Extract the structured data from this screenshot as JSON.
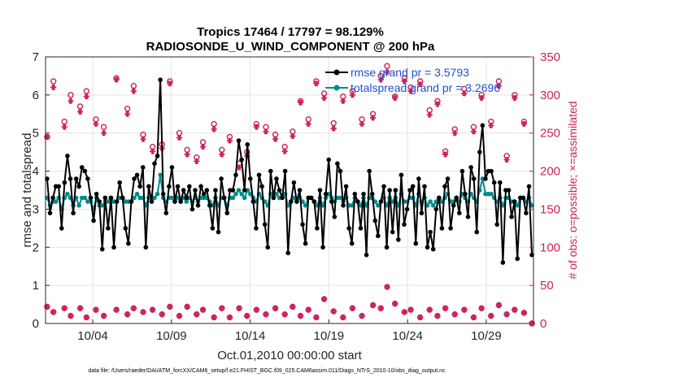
{
  "chart_data": {
    "type": "line",
    "title_line1": "Tropics 17464 / 17797 = 98.129%",
    "title_line2": "RADIOSONDE_U_WIND_COMPONENT @ 200 hPa",
    "xlabel": "Oct.01,2010 00:00:00 start",
    "ylabel_left": "rmse and totalspread",
    "ylabel_right": "# of obs: o=possible; ×=assimilated",
    "xlim": [
      1.0,
      32.0
    ],
    "ylim_left": [
      0,
      7
    ],
    "ylim_right": [
      0,
      350
    ],
    "x_ticks": [
      {
        "value": 4,
        "label": "10/04"
      },
      {
        "value": 9,
        "label": "10/09"
      },
      {
        "value": 14,
        "label": "10/14"
      },
      {
        "value": 19,
        "label": "10/19"
      },
      {
        "value": 24,
        "label": "10/24"
      },
      {
        "value": 29,
        "label": "10/29"
      }
    ],
    "y_ticks_left": [
      "0",
      "1",
      "2",
      "3",
      "4",
      "5",
      "6",
      "7"
    ],
    "y_ticks_right": [
      "0",
      "50",
      "100",
      "150",
      "200",
      "250",
      "300",
      "350"
    ],
    "series": [
      {
        "name": "rmse",
        "legend": "rmse grand pr = 3.5793",
        "color": "#000000",
        "values": [
          3.8,
          2.9,
          3.3,
          3.6,
          3.6,
          2.5,
          3.7,
          4.4,
          3.8,
          2.9,
          3.8,
          3.6,
          4.1,
          4.0,
          3.8,
          3.3,
          2.7,
          3.4,
          3.2,
          1.95,
          3.3,
          2.5,
          3.3,
          2.0,
          3.2,
          3.7,
          3.3,
          2.5,
          2.1,
          3.2,
          3.8,
          3.9,
          3.6,
          4.1,
          2.0,
          3.6,
          3.2,
          4.2,
          4.4,
          6.4,
          3.4,
          2.9,
          3.6,
          4.1,
          3.2,
          3.6,
          3.2,
          3.5,
          3.3,
          3.6,
          3.0,
          3.5,
          3.1,
          3.6,
          3.4,
          3.5,
          3.1,
          2.5,
          3.5,
          2.4,
          3.8,
          3.3,
          2.9,
          3.5,
          3.5,
          3.9,
          4.8,
          4.3,
          3.5,
          4.7,
          3.8,
          3.2,
          2.5,
          3.9,
          3.6,
          2.6,
          2.0,
          4.0,
          3.3,
          3.8,
          3.5,
          3.3,
          4.0,
          1.85,
          3.2,
          3.7,
          3.2,
          3.5,
          2.6,
          2.1,
          3.3,
          3.3,
          3.2,
          2.5,
          3.5,
          2.0,
          3.4,
          4.3,
          3.2,
          2.8,
          4.2,
          4.0,
          3.1,
          3.6,
          2.5,
          2.1,
          3.4,
          3.2,
          2.5,
          3.4,
          1.8,
          4.0,
          3.4,
          2.7,
          2.3,
          3.2,
          3.6,
          2.0,
          3.5,
          2.4,
          3.5,
          2.2,
          3.9,
          2.6,
          3.0,
          3.5,
          3.6,
          2.1,
          3.8,
          2.9,
          3.6,
          2.0,
          2.4,
          1.95,
          3.0,
          3.3,
          2.5,
          3.6,
          3.8,
          2.5,
          3.1,
          3.3,
          2.9,
          4.0,
          3.4,
          2.8,
          4.1,
          3.8,
          2.4,
          4.5,
          5.2,
          3.8,
          4.0,
          4.0,
          3.7,
          2.6,
          3.7,
          1.6,
          3.5,
          3.5,
          2.8,
          3.2,
          1.7,
          3.3,
          3.3,
          2.9,
          3.6,
          1.8
        ],
        "marker": "filled circle"
      },
      {
        "name": "totalspread",
        "legend": "totalspread grand pr = 3.2696",
        "color": "#008b8b",
        "values": [
          3.3,
          3.1,
          3.2,
          3.2,
          3.3,
          3.0,
          3.3,
          3.4,
          3.3,
          3.1,
          3.3,
          3.1,
          3.3,
          3.3,
          3.2,
          3.2,
          3.0,
          3.3,
          3.1,
          3.1,
          3.2,
          3.2,
          3.3,
          3.2,
          3.2,
          3.3,
          3.3,
          3.2,
          3.2,
          3.2,
          3.3,
          3.4,
          3.3,
          3.3,
          3.1,
          3.3,
          3.2,
          3.3,
          3.4,
          3.9,
          3.3,
          3.2,
          3.3,
          3.3,
          3.2,
          3.3,
          3.2,
          3.3,
          3.2,
          3.3,
          3.2,
          3.3,
          3.2,
          3.3,
          3.3,
          3.3,
          3.2,
          3.1,
          3.3,
          3.1,
          3.3,
          3.3,
          3.1,
          3.3,
          3.3,
          3.4,
          3.5,
          3.4,
          3.3,
          3.5,
          3.4,
          3.3,
          3.2,
          3.4,
          3.3,
          3.2,
          3.1,
          3.4,
          3.3,
          3.4,
          3.3,
          3.3,
          3.4,
          3.1,
          3.2,
          3.3,
          3.2,
          3.3,
          3.2,
          3.1,
          3.3,
          3.3,
          3.2,
          3.1,
          3.3,
          3.1,
          3.3,
          3.4,
          3.3,
          3.2,
          3.3,
          3.3,
          3.2,
          3.3,
          3.1,
          3.1,
          3.3,
          3.2,
          3.1,
          3.3,
          3.1,
          3.3,
          3.3,
          3.2,
          3.1,
          3.2,
          3.3,
          3.1,
          3.3,
          3.2,
          3.3,
          3.1,
          3.4,
          3.2,
          3.2,
          3.3,
          3.3,
          3.1,
          3.4,
          3.2,
          3.3,
          3.1,
          3.2,
          3.1,
          3.2,
          3.3,
          3.2,
          3.3,
          3.4,
          3.2,
          3.2,
          3.3,
          3.2,
          3.4,
          3.3,
          3.2,
          3.4,
          3.3,
          3.2,
          3.5,
          3.8,
          3.4,
          3.4,
          3.4,
          3.3,
          3.2,
          3.3,
          3.1,
          3.3,
          3.3,
          3.2,
          3.2,
          3.1,
          3.3,
          3.3,
          3.2,
          3.3,
          3.1
        ],
        "marker": "filled circle"
      }
    ],
    "obs_possible": {
      "name": "possible",
      "color": "#cc1f5c",
      "marker": "open circle",
      "points": [
        [
          1.1,
          245
        ],
        [
          1.5,
          318
        ],
        [
          2.2,
          265
        ],
        [
          2.6,
          300
        ],
        [
          3.2,
          285
        ],
        [
          3.6,
          305
        ],
        [
          4.2,
          268
        ],
        [
          4.7,
          258
        ],
        [
          5.5,
          322
        ],
        [
          6.2,
          282
        ],
        [
          6.6,
          312
        ],
        [
          7.2,
          248
        ],
        [
          7.8,
          232
        ],
        [
          8.4,
          235
        ],
        [
          8.9,
          318
        ],
        [
          9.5,
          250
        ],
        [
          10.0,
          228
        ],
        [
          10.6,
          218
        ],
        [
          11.0,
          238
        ],
        [
          11.7,
          262
        ],
        [
          12.2,
          228
        ],
        [
          12.7,
          245
        ],
        [
          13.3,
          210
        ],
        [
          13.8,
          225
        ],
        [
          14.4,
          262
        ],
        [
          15.0,
          258
        ],
        [
          15.6,
          248
        ],
        [
          16.2,
          232
        ],
        [
          16.7,
          252
        ],
        [
          17.2,
          292
        ],
        [
          17.7,
          268
        ],
        [
          18.2,
          318
        ],
        [
          18.7,
          302
        ],
        [
          19.3,
          263
        ],
        [
          19.9,
          298
        ],
        [
          20.5,
          305
        ],
        [
          21.1,
          268
        ],
        [
          21.8,
          275
        ],
        [
          22.3,
          325
        ],
        [
          22.7,
          338
        ],
        [
          23.2,
          298
        ],
        [
          23.8,
          322
        ],
        [
          24.2,
          310
        ],
        [
          24.8,
          318
        ],
        [
          25.4,
          280
        ],
        [
          25.9,
          292
        ],
        [
          26.4,
          226
        ],
        [
          27.0,
          255
        ],
        [
          27.6,
          308
        ],
        [
          28.2,
          258
        ],
        [
          28.7,
          300
        ],
        [
          29.3,
          265
        ],
        [
          29.8,
          318
        ],
        [
          30.3,
          220
        ],
        [
          30.8,
          300
        ],
        [
          31.4,
          265
        ],
        [
          31.9,
          0
        ]
      ]
    },
    "obs_assimilated": {
      "name": "assimilated",
      "color": "#cc1f5c",
      "marker": "asterisk",
      "points": [
        [
          1.1,
          245
        ],
        [
          1.5,
          310
        ],
        [
          2.2,
          258
        ],
        [
          2.6,
          292
        ],
        [
          3.2,
          278
        ],
        [
          3.6,
          298
        ],
        [
          4.2,
          262
        ],
        [
          4.7,
          250
        ],
        [
          5.5,
          320
        ],
        [
          6.2,
          275
        ],
        [
          6.6,
          305
        ],
        [
          7.2,
          242
        ],
        [
          7.8,
          226
        ],
        [
          8.4,
          230
        ],
        [
          8.9,
          315
        ],
        [
          9.5,
          244
        ],
        [
          10.0,
          222
        ],
        [
          10.6,
          213
        ],
        [
          11.0,
          232
        ],
        [
          11.7,
          255
        ],
        [
          12.2,
          222
        ],
        [
          12.7,
          240
        ],
        [
          13.3,
          205
        ],
        [
          13.8,
          220
        ],
        [
          14.4,
          258
        ],
        [
          15.0,
          252
        ],
        [
          15.6,
          242
        ],
        [
          16.2,
          226
        ],
        [
          16.7,
          246
        ],
        [
          17.2,
          290
        ],
        [
          17.7,
          262
        ],
        [
          18.2,
          315
        ],
        [
          18.7,
          296
        ],
        [
          19.3,
          256
        ],
        [
          19.9,
          292
        ],
        [
          20.5,
          300
        ],
        [
          21.1,
          262
        ],
        [
          21.8,
          270
        ],
        [
          22.3,
          320
        ],
        [
          22.7,
          330
        ],
        [
          23.2,
          296
        ],
        [
          23.8,
          318
        ],
        [
          24.2,
          305
        ],
        [
          24.8,
          314
        ],
        [
          25.4,
          274
        ],
        [
          25.9,
          288
        ],
        [
          26.4,
          222
        ],
        [
          27.0,
          250
        ],
        [
          27.6,
          302
        ],
        [
          28.2,
          252
        ],
        [
          28.7,
          296
        ],
        [
          29.3,
          260
        ],
        [
          29.8,
          312
        ],
        [
          30.3,
          215
        ],
        [
          30.8,
          296
        ],
        [
          31.4,
          262
        ],
        [
          31.9,
          0
        ]
      ]
    },
    "obs_low_possible": [
      [
        1.1,
        22
      ],
      [
        1.5,
        15
      ],
      [
        2.2,
        20
      ],
      [
        2.6,
        10
      ],
      [
        3.2,
        20
      ],
      [
        3.6,
        8
      ],
      [
        4.2,
        18
      ],
      [
        4.7,
        10
      ],
      [
        5.5,
        18
      ],
      [
        6.2,
        12
      ],
      [
        6.6,
        20
      ],
      [
        7.2,
        15
      ],
      [
        7.8,
        18
      ],
      [
        8.4,
        12
      ],
      [
        8.9,
        22
      ],
      [
        9.5,
        10
      ],
      [
        10.0,
        22
      ],
      [
        10.6,
        12
      ],
      [
        11.0,
        18
      ],
      [
        11.7,
        8
      ],
      [
        12.2,
        20
      ],
      [
        12.7,
        8
      ],
      [
        13.3,
        20
      ],
      [
        13.8,
        10
      ],
      [
        14.4,
        18
      ],
      [
        15.0,
        12
      ],
      [
        15.6,
        20
      ],
      [
        16.2,
        12
      ],
      [
        16.7,
        22
      ],
      [
        17.2,
        10
      ],
      [
        17.7,
        18
      ],
      [
        18.2,
        8
      ],
      [
        18.7,
        32
      ],
      [
        19.3,
        16
      ],
      [
        19.9,
        8
      ],
      [
        20.5,
        20
      ],
      [
        21.1,
        10
      ],
      [
        21.8,
        24
      ],
      [
        22.3,
        20
      ],
      [
        22.7,
        48
      ],
      [
        23.2,
        26
      ],
      [
        23.8,
        15
      ],
      [
        24.2,
        18
      ],
      [
        24.8,
        8
      ],
      [
        25.4,
        18
      ],
      [
        25.9,
        10
      ],
      [
        26.4,
        20
      ],
      [
        27.0,
        12
      ],
      [
        27.6,
        18
      ],
      [
        28.2,
        8
      ],
      [
        28.7,
        20
      ],
      [
        29.3,
        10
      ],
      [
        29.8,
        24
      ],
      [
        30.3,
        12
      ],
      [
        30.8,
        18
      ],
      [
        31.4,
        14
      ],
      [
        31.9,
        0
      ]
    ]
  },
  "footer_note": "data file: /Users/raeder/DAI/ATM_forcXX/CAM6_setup/f.e21.FHIST_BGC.f09_025.CAM6assim.011/Diags_NTrS_2010-10/obs_diag_output.nc"
}
